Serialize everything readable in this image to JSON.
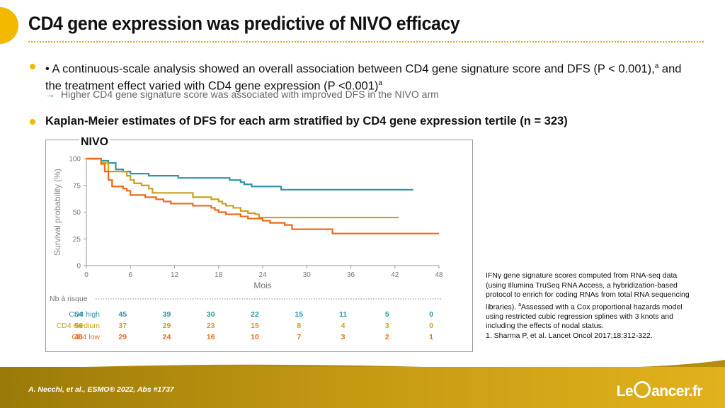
{
  "slide": {
    "title": "CD4 gene expression was predictive of NIVO efficacy",
    "bullet1": {
      "part1": "• A continuous-scale analysis showed an overall association between CD4 gene signature score and DFS (P < 0.001),",
      "sup1": "a",
      "part2": " and the treatment effect varied with CD4 gene expression (P <0.001)",
      "sup2": "a"
    },
    "sub_arrow": "→",
    "sub_bullet": "Higher CD4 gene signature score was associated with improved DFS in the NIVO arm",
    "bullet2": "Kaplan-Meier estimates of DFS for each arm stratified by CD4 gene expression tertile (n = 323)",
    "panel_label": "NIVO",
    "footnote": {
      "part1": "IFNγ gene signature scores computed from RNA-seq data (using Illumina TruSeq RNA Access, a hybridization-based protocol to enrich for coding RNAs from total RNA sequencing libraries). ",
      "sup": "a",
      "part2": "Assessed with a Cox proportional hazards model using restricted cubic regression splines with 3 knots and including the effects of nodal status.",
      "ref": "1. Sharma P, et al. Lancet Oncol 2017;18:312-322."
    },
    "citation": "A. Necchi, et al., ESMO® 2022, Abs #1737",
    "logo": {
      "left": "Le",
      "right": "ancer.fr"
    },
    "colors": {
      "accent": "#f3b800",
      "cd4_high": "#2f95a6",
      "cd4_medium": "#c9a21a",
      "cd4_low": "#ef6a1a"
    }
  },
  "chart_data": {
    "type": "line",
    "title": "",
    "xlabel": "Mois",
    "ylabel": "Survival probability (%)",
    "xlim": [
      0,
      48
    ],
    "ylim": [
      0,
      100
    ],
    "x_ticks": [
      0,
      6,
      12,
      18,
      24,
      30,
      36,
      42,
      48
    ],
    "y_ticks": [
      0,
      25,
      50,
      75,
      100
    ],
    "grid": false,
    "series": [
      {
        "name": "CD4 high",
        "color": "#2f95a6",
        "points": [
          [
            0,
            100
          ],
          [
            1.5,
            100
          ],
          [
            2,
            98
          ],
          [
            3,
            96
          ],
          [
            4,
            90
          ],
          [
            5,
            88
          ],
          [
            6,
            86
          ],
          [
            8.5,
            84
          ],
          [
            12,
            84
          ],
          [
            12.5,
            82
          ],
          [
            18,
            82
          ],
          [
            19.5,
            80
          ],
          [
            21,
            78
          ],
          [
            21.5,
            76
          ],
          [
            22.5,
            74
          ],
          [
            26,
            74
          ],
          [
            26.5,
            71
          ],
          [
            44.5,
            71
          ]
        ]
      },
      {
        "name": "CD4 medium",
        "color": "#c9a21a",
        "points": [
          [
            0,
            100
          ],
          [
            1.5,
            100
          ],
          [
            2,
            96
          ],
          [
            3,
            88
          ],
          [
            5,
            88
          ],
          [
            5.5,
            84
          ],
          [
            6,
            80
          ],
          [
            6.5,
            77
          ],
          [
            7.5,
            75
          ],
          [
            8.5,
            72
          ],
          [
            9,
            68
          ],
          [
            14,
            68
          ],
          [
            14.5,
            64
          ],
          [
            17,
            62
          ],
          [
            18,
            60
          ],
          [
            18.5,
            58
          ],
          [
            19,
            56
          ],
          [
            20,
            54
          ],
          [
            21,
            51
          ],
          [
            22,
            49
          ],
          [
            23,
            48
          ],
          [
            23.5,
            45
          ],
          [
            42.5,
            45
          ]
        ]
      },
      {
        "name": "CD4 low",
        "color": "#ef6a1a",
        "points": [
          [
            0,
            100
          ],
          [
            1.5,
            100
          ],
          [
            2,
            95
          ],
          [
            2.5,
            88
          ],
          [
            3,
            80
          ],
          [
            3.5,
            74
          ],
          [
            5,
            72
          ],
          [
            5.5,
            70
          ],
          [
            6,
            66
          ],
          [
            8,
            64
          ],
          [
            9.5,
            62
          ],
          [
            10.5,
            60
          ],
          [
            11.5,
            58
          ],
          [
            14,
            58
          ],
          [
            14.5,
            56
          ],
          [
            17,
            54
          ],
          [
            17.5,
            52
          ],
          [
            18,
            50
          ],
          [
            19,
            48
          ],
          [
            21,
            46
          ],
          [
            22,
            44
          ],
          [
            24,
            42
          ],
          [
            25,
            40
          ],
          [
            27,
            38
          ],
          [
            28,
            34
          ],
          [
            33,
            34
          ],
          [
            33.5,
            30
          ],
          [
            48,
            30
          ]
        ]
      }
    ],
    "risk_table": {
      "header": "Nb à risque",
      "times": [
        0,
        6,
        12,
        18,
        24,
        30,
        36,
        42,
        48
      ],
      "rows": [
        {
          "label": "CD4 high",
          "color": "#2f95a6",
          "values": [
            54,
            45,
            39,
            30,
            22,
            15,
            11,
            5,
            0
          ]
        },
        {
          "label": "CD4 medium",
          "color": "#c9a21a",
          "values": [
            56,
            37,
            29,
            23,
            15,
            8,
            4,
            3,
            0
          ]
        },
        {
          "label": "CD4 low",
          "color": "#ef6a1a",
          "values": [
            46,
            29,
            24,
            16,
            10,
            7,
            3,
            2,
            1
          ]
        }
      ]
    }
  }
}
